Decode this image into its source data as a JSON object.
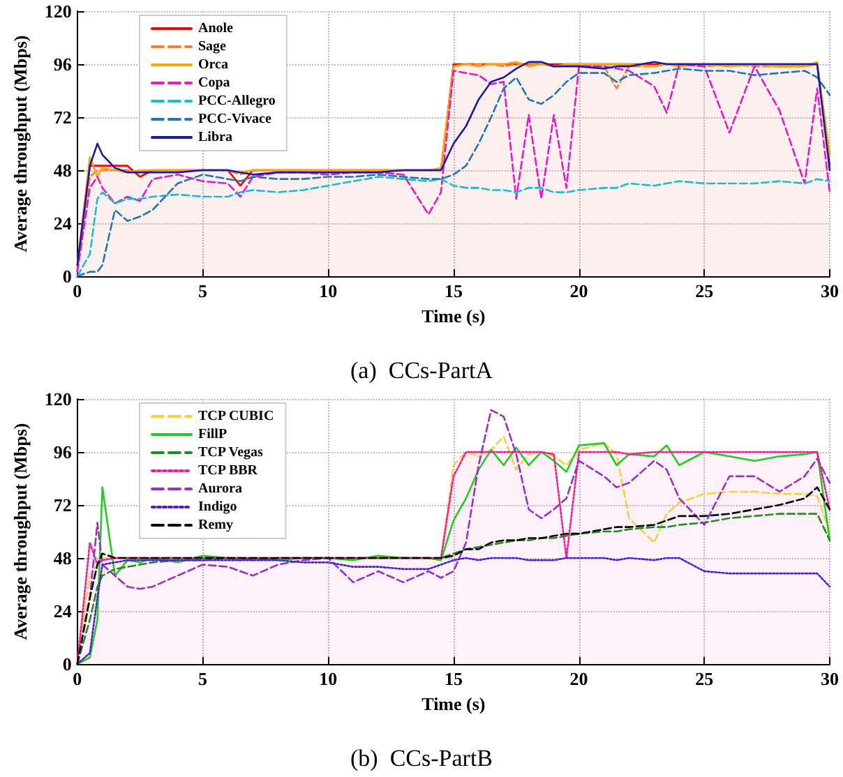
{
  "chart_data": [
    {
      "type": "line",
      "xlabel": "Time (s)",
      "ylabel": "Average throughput (Mbps)",
      "annotations": [
        "(a)  CCs-PartA"
      ],
      "xlim": [
        0,
        30
      ],
      "xticks": [
        0,
        5,
        10,
        15,
        20,
        25,
        30
      ],
      "ylim": [
        0,
        120
      ],
      "yticks": [
        0,
        24,
        48,
        72,
        96,
        120
      ],
      "grid": true,
      "legend": "top left",
      "marker": "none",
      "x": [
        0,
        0.5,
        0.8,
        1,
        1.5,
        2,
        2.5,
        3,
        4,
        5,
        6,
        6.5,
        7,
        8,
        9,
        10,
        11,
        12,
        13,
        14,
        14.5,
        15,
        15.5,
        16,
        16.5,
        17,
        17.5,
        18,
        18.5,
        19,
        19.5,
        20,
        21,
        21.5,
        22,
        23,
        23.5,
        24,
        25,
        26,
        27,
        28,
        29,
        29.5,
        30
      ],
      "series": [
        {
          "name": "Anole",
          "type": "area",
          "color": "#ff0000",
          "line_style": "solid",
          "values": [
            3,
            50,
            50,
            50,
            50,
            50,
            45,
            48,
            48,
            48,
            48,
            41,
            48,
            48,
            48,
            48,
            48,
            48,
            48,
            48,
            48,
            96,
            96,
            96,
            96,
            96,
            96,
            96,
            96,
            96,
            96,
            96,
            96,
            96,
            96,
            96,
            96,
            96,
            96,
            96,
            96,
            96,
            96,
            96,
            50
          ]
        },
        {
          "name": "Sage",
          "color": "#ff7f2a",
          "line_style": "dashed",
          "values": [
            2,
            45,
            48,
            48,
            48,
            48,
            47,
            48,
            48,
            48,
            48,
            46,
            48,
            48,
            48,
            48,
            48,
            48,
            48,
            48,
            48,
            95,
            96,
            96,
            96,
            95,
            96,
            96,
            96,
            95,
            96,
            95,
            95,
            85,
            95,
            95,
            96,
            96,
            95,
            96,
            95,
            95,
            95,
            96,
            55
          ]
        },
        {
          "name": "Orca",
          "color": "#ffa500",
          "line_style": "solid",
          "values": [
            5,
            54,
            45,
            49,
            48,
            47,
            48,
            48,
            48,
            48,
            48,
            47,
            48,
            48,
            48,
            48,
            48,
            48,
            48,
            48,
            49,
            95,
            96,
            95,
            96,
            96,
            97,
            95,
            96,
            95,
            96,
            96,
            96,
            96,
            96,
            95,
            96,
            95,
            96,
            95,
            96,
            95,
            95,
            97,
            55
          ]
        },
        {
          "name": "Copa",
          "color": "#e619c8",
          "line_style": "dashed",
          "values": [
            2,
            40,
            45,
            40,
            33,
            36,
            34,
            44,
            46,
            43,
            42,
            36,
            45,
            47,
            47,
            46,
            47,
            47,
            46,
            28,
            38,
            93,
            92,
            91,
            87,
            88,
            35,
            73,
            35,
            73,
            40,
            95,
            95,
            94,
            93,
            86,
            74,
            96,
            95,
            65,
            95,
            75,
            42,
            85,
            38
          ]
        },
        {
          "name": "PCC-Allegro",
          "color": "#17becf",
          "line_style": "dashed",
          "values": [
            0,
            10,
            35,
            38,
            33,
            35,
            35,
            36,
            37,
            36,
            36,
            38,
            39,
            38,
            39,
            41,
            43,
            45,
            44,
            43,
            44,
            41,
            40,
            40,
            39,
            39,
            38,
            40,
            40,
            38,
            38,
            39,
            40,
            40,
            42,
            41,
            42,
            43,
            42,
            42,
            42,
            43,
            42,
            44,
            43
          ]
        },
        {
          "name": "PCC-Vivace",
          "color": "#1f77b4",
          "line_style": "dashed",
          "values": [
            0,
            2,
            2,
            5,
            30,
            25,
            27,
            30,
            42,
            46,
            44,
            43,
            45,
            44,
            44,
            45,
            45,
            46,
            45,
            44,
            44,
            46,
            50,
            60,
            72,
            85,
            90,
            80,
            78,
            82,
            88,
            92,
            92,
            88,
            91,
            92,
            93,
            94,
            93,
            93,
            91,
            92,
            93,
            90,
            82
          ]
        },
        {
          "name": "Libra",
          "color": "#1a1aa6",
          "line_style": "solid",
          "values": [
            5,
            50,
            60,
            55,
            49,
            47,
            47,
            47,
            47,
            48,
            48,
            47,
            46,
            47,
            47,
            47,
            47,
            47,
            48,
            48,
            48,
            60,
            68,
            80,
            88,
            90,
            94,
            97,
            97,
            95,
            95,
            95,
            94,
            95,
            95,
            97,
            96,
            96,
            96,
            96,
            96,
            96,
            96,
            96,
            48
          ]
        }
      ]
    },
    {
      "type": "line",
      "xlabel": "Time (s)",
      "ylabel": "Average throughput (Mbps)",
      "annotations": [
        "(b)  CCs-PartB"
      ],
      "xlim": [
        0,
        30
      ],
      "xticks": [
        0,
        5,
        10,
        15,
        20,
        25,
        30
      ],
      "ylim": [
        0,
        120
      ],
      "yticks": [
        0,
        24,
        48,
        72,
        96,
        120
      ],
      "grid": true,
      "legend": "top left",
      "marker": "none",
      "x": [
        0,
        0.5,
        0.8,
        1,
        1.5,
        2,
        2.5,
        3,
        4,
        5,
        6,
        6.5,
        7,
        8,
        9,
        10,
        11,
        12,
        13,
        14,
        14.5,
        15,
        15.5,
        16,
        16.5,
        17,
        17.5,
        18,
        18.5,
        19,
        19.5,
        20,
        21,
        21.5,
        22,
        23,
        23.5,
        24,
        25,
        26,
        27,
        28,
        29,
        29.5,
        30
      ],
      "series": [
        {
          "name": "TCP CUBIC",
          "color": "#f5d142",
          "line_style": "dashed",
          "values": [
            0,
            40,
            45,
            48,
            48,
            48,
            48,
            48,
            48,
            48,
            48,
            48,
            48,
            48,
            48,
            48,
            48,
            48,
            48,
            48,
            47,
            90,
            96,
            94,
            97,
            103,
            88,
            95,
            96,
            94,
            90,
            97,
            100,
            95,
            66,
            55,
            68,
            73,
            77,
            78,
            78,
            77,
            77,
            76,
            60
          ]
        },
        {
          "name": "FillP",
          "color": "#22cc22",
          "line_style": "solid",
          "values": [
            0,
            3,
            20,
            80,
            40,
            47,
            46,
            48,
            46,
            49,
            48,
            47,
            48,
            47,
            48,
            48,
            47,
            49,
            48,
            48,
            47,
            65,
            75,
            88,
            97,
            90,
            98,
            90,
            96,
            92,
            87,
            99,
            100,
            90,
            95,
            94,
            99,
            90,
            96,
            94,
            92,
            94,
            95,
            96,
            56
          ]
        },
        {
          "name": "TCP Vegas",
          "color": "#228b22",
          "line_style": "dashed",
          "values": [
            0,
            20,
            35,
            40,
            43,
            44,
            45,
            46,
            47,
            47,
            48,
            48,
            47,
            48,
            48,
            48,
            48,
            48,
            48,
            48,
            48,
            50,
            52,
            53,
            54,
            55,
            56,
            56,
            57,
            57,
            58,
            59,
            60,
            60,
            61,
            62,
            62,
            63,
            64,
            66,
            67,
            68,
            68,
            68,
            56
          ]
        },
        {
          "name": "TCP BBR",
          "type": "area",
          "color": "#ff1493",
          "line_style": "dotted",
          "values": [
            0,
            55,
            45,
            47,
            48,
            48,
            48,
            48,
            48,
            48,
            48,
            48,
            48,
            48,
            48,
            48,
            48,
            48,
            48,
            48,
            48,
            85,
            96,
            96,
            96,
            96,
            96,
            96,
            96,
            95,
            48,
            96,
            96,
            96,
            95,
            96,
            96,
            96,
            96,
            96,
            96,
            96,
            96,
            96,
            70
          ]
        },
        {
          "name": "Aurora",
          "color": "#9b30c8",
          "line_style": "dashed",
          "values": [
            0,
            30,
            64,
            45,
            40,
            35,
            34,
            35,
            40,
            45,
            44,
            42,
            40,
            45,
            47,
            48,
            37,
            42,
            37,
            42,
            39,
            42,
            55,
            90,
            115,
            112,
            95,
            70,
            66,
            70,
            75,
            92,
            85,
            80,
            82,
            92,
            88,
            75,
            63,
            85,
            85,
            78,
            85,
            93,
            82
          ]
        },
        {
          "name": "Indigo",
          "color": "#4b1fd0",
          "line_style": "dotted",
          "values": [
            0,
            5,
            30,
            45,
            46,
            47,
            47,
            47,
            47,
            47,
            47,
            47,
            47,
            47,
            46,
            46,
            44,
            44,
            43,
            43,
            45,
            47,
            48,
            47,
            48,
            48,
            48,
            47,
            47,
            47,
            48,
            48,
            48,
            47,
            48,
            47,
            48,
            48,
            42,
            41,
            41,
            41,
            41,
            41,
            35
          ]
        },
        {
          "name": "Remy",
          "color": "#000000",
          "line_style": "dashed",
          "values": [
            0,
            30,
            45,
            50,
            48,
            48,
            48,
            48,
            48,
            48,
            48,
            48,
            48,
            48,
            48,
            48,
            48,
            48,
            48,
            48,
            48,
            49,
            52,
            52,
            55,
            56,
            56,
            57,
            57,
            58,
            59,
            59,
            61,
            62,
            62,
            63,
            65,
            67,
            67,
            68,
            70,
            72,
            75,
            80,
            70
          ]
        }
      ]
    }
  ]
}
